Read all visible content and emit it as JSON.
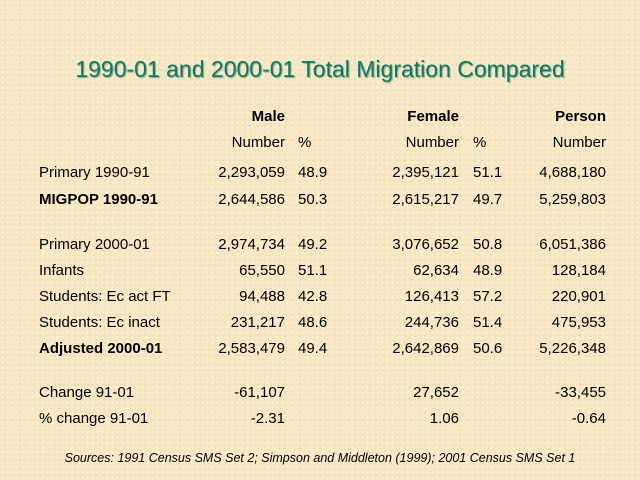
{
  "title": "1990-01 and 2000-01 Total Migration Compared",
  "header": {
    "male": "Male",
    "female": "Female",
    "person": "Person",
    "number": "Number",
    "percent": "%"
  },
  "rows": [
    {
      "label": "Primary 1990-91",
      "male_num": "2,293,059",
      "male_pct": "48.9",
      "female_num": "2,395,121",
      "female_pct": "51.1",
      "person_num": "4,688,180"
    },
    {
      "label": "MIGPOP 1990-91",
      "male_num": "2,644,586",
      "male_pct": "50.3",
      "female_num": "2,615,217",
      "female_pct": "49.7",
      "person_num": "5,259,803"
    },
    {
      "label": "Primary 2000-01",
      "male_num": "2,974,734",
      "male_pct": "49.2",
      "female_num": "3,076,652",
      "female_pct": "50.8",
      "person_num": "6,051,386"
    },
    {
      "label": "Infants",
      "male_num": "65,550",
      "male_pct": "51.1",
      "female_num": "62,634",
      "female_pct": "48.9",
      "person_num": "128,184"
    },
    {
      "label": "Students: Ec act FT",
      "male_num": "94,488",
      "male_pct": "42.8",
      "female_num": "126,413",
      "female_pct": "57.2",
      "person_num": "220,901"
    },
    {
      "label": "Students: Ec inact",
      "male_num": "231,217",
      "male_pct": "48.6",
      "female_num": "244,736",
      "female_pct": "51.4",
      "person_num": "475,953"
    },
    {
      "label": "Adjusted 2000-01",
      "male_num": "2,583,479",
      "male_pct": "49.4",
      "female_num": "2,642,869",
      "female_pct": "50.6",
      "person_num": "5,226,348"
    },
    {
      "label": "Change 91-01",
      "male_num": "-61,107",
      "male_pct": "",
      "female_num": "27,652",
      "female_pct": "",
      "person_num": "-33,455"
    },
    {
      "label": "% change 91-01",
      "male_num": "-2.31",
      "male_pct": "",
      "female_num": "1.06",
      "female_pct": "",
      "person_num": "-0.64"
    }
  ],
  "source": "Sources: 1991 Census SMS Set 2; Simpson and Middleton (1999); 2001 Census SMS Set 1"
}
